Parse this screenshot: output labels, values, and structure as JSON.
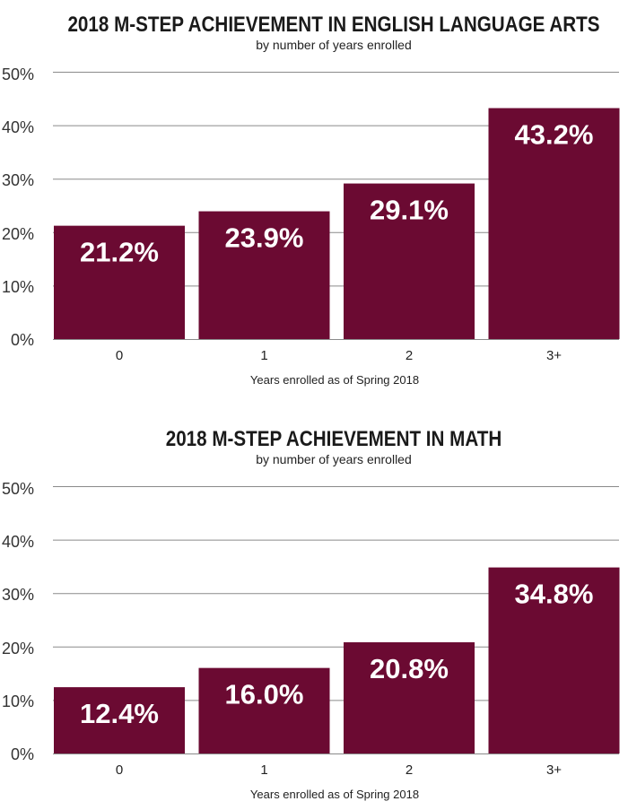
{
  "charts": [
    {
      "title": "2018 M-STEP ACHIEVEMENT IN ENGLISH LANGUAGE ARTS",
      "subtitle": "by number of years enrolled",
      "xlabel": "Years enrolled as of Spring 2018",
      "yticks": [
        "0%",
        "10%",
        "20%",
        "30%",
        "40%",
        "50%"
      ],
      "categories": [
        "0",
        "1",
        "2",
        "3+"
      ],
      "bar_labels": [
        "21.2%",
        "23.9%",
        "29.1%",
        "43.2%"
      ]
    },
    {
      "title": "2018 M-STEP ACHIEVEMENT IN MATH",
      "subtitle": "by number of years enrolled",
      "xlabel": "Years enrolled as of Spring 2018",
      "yticks": [
        "0%",
        "10%",
        "20%",
        "30%",
        "40%",
        "50%"
      ],
      "categories": [
        "0",
        "1",
        "2",
        "3+"
      ],
      "bar_labels": [
        "12.4%",
        "16.0%",
        "20.8%",
        "34.8%"
      ]
    }
  ],
  "chart_data": [
    {
      "type": "bar",
      "title": "2018 M-STEP ACHIEVEMENT IN ENGLISH LANGUAGE ARTS",
      "subtitle": "by number of years enrolled",
      "xlabel": "Years enrolled as of Spring 2018",
      "ylabel": "",
      "categories": [
        "0",
        "1",
        "2",
        "3+"
      ],
      "values": [
        21.2,
        23.9,
        29.1,
        43.2
      ],
      "ylim": [
        0,
        50
      ],
      "grid": true,
      "bar_color": "#6b0a32"
    },
    {
      "type": "bar",
      "title": "2018 M-STEP ACHIEVEMENT IN MATH",
      "subtitle": "by number of years enrolled",
      "xlabel": "Years enrolled as of Spring 2018",
      "ylabel": "",
      "categories": [
        "0",
        "1",
        "2",
        "3+"
      ],
      "values": [
        12.4,
        16.0,
        20.8,
        34.8
      ],
      "ylim": [
        0,
        50
      ],
      "grid": true,
      "bar_color": "#6b0a32"
    }
  ]
}
